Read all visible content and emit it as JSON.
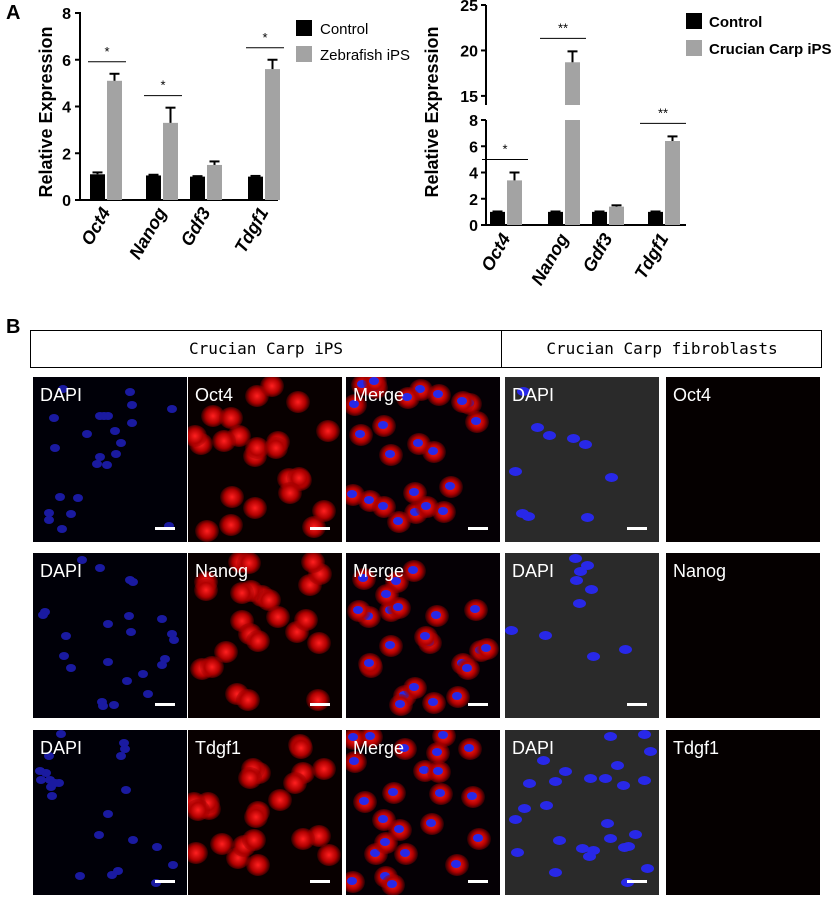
{
  "panel_labels": {
    "a": "A",
    "b": "B"
  },
  "headers": {
    "ips": "Crucian Carp iPS",
    "fibro": "Crucian Carp fibroblasts"
  },
  "chart_data": [
    {
      "type": "bar",
      "categories": [
        "Oct4",
        "Nanog",
        "Gdf3",
        "Tdgf1"
      ],
      "series": [
        {
          "name": "Control",
          "values": [
            1.1,
            1.05,
            1.0,
            1.0
          ],
          "errors": [
            0.08,
            0.03,
            0.02,
            0.03
          ]
        },
        {
          "name": "Zebrafish iPS",
          "values": [
            5.1,
            3.3,
            1.5,
            5.6
          ],
          "errors": [
            0.3,
            0.65,
            0.15,
            0.4
          ]
        }
      ],
      "significance": [
        "*",
        "*",
        "",
        "*"
      ],
      "ylabel": "Relative Expression",
      "ylim": [
        0,
        8
      ],
      "yticks": [
        "0",
        "2",
        "4",
        "6",
        "8"
      ],
      "colors": {
        "control": "#000000",
        "treated": "#a3a3a3"
      },
      "legend_position": "top-right"
    },
    {
      "type": "bar",
      "categories": [
        "Oct4",
        "Nanog",
        "Gdf3",
        "Tdgf1"
      ],
      "series": [
        {
          "name": "Control",
          "values": [
            1.0,
            1.0,
            1.0,
            1.0
          ],
          "errors": [
            0.03,
            0.03,
            0.03,
            0.03
          ]
        },
        {
          "name": "Crucian Carp iPS",
          "values": [
            3.4,
            18.7,
            1.4,
            6.4
          ],
          "errors": [
            0.6,
            1.2,
            0.1,
            0.35
          ]
        }
      ],
      "significance": [
        "*",
        "**",
        "",
        "**"
      ],
      "ylabel": "Relative Expression",
      "ylim": [
        0,
        25
      ],
      "axis_break": [
        8,
        14
      ],
      "yticks_lower": [
        "0",
        "2",
        "4",
        "6",
        "8"
      ],
      "yticks_upper": [
        "15",
        "20",
        "25"
      ],
      "colors": {
        "control": "#000000",
        "treated": "#a3a3a3"
      },
      "legend_position": "top-right"
    }
  ],
  "micrographs": [
    [
      {
        "label": "DAPI",
        "stain": "dapi"
      },
      {
        "label": "Oct4",
        "stain": "red"
      },
      {
        "label": "Merge",
        "stain": "merge"
      },
      {
        "label": "DAPI",
        "stain": "dapi-fibro"
      },
      {
        "label": "Oct4",
        "stain": "dark"
      }
    ],
    [
      {
        "label": "DAPI",
        "stain": "dapi"
      },
      {
        "label": "Nanog",
        "stain": "red"
      },
      {
        "label": "Merge",
        "stain": "merge"
      },
      {
        "label": "DAPI",
        "stain": "dapi-fibro"
      },
      {
        "label": "Nanog",
        "stain": "dark"
      }
    ],
    [
      {
        "label": "DAPI",
        "stain": "dapi"
      },
      {
        "label": "Tdgf1",
        "stain": "red"
      },
      {
        "label": "Merge",
        "stain": "merge"
      },
      {
        "label": "DAPI",
        "stain": "dapi-fibro"
      },
      {
        "label": "Tdgf1",
        "stain": "dark"
      }
    ]
  ]
}
